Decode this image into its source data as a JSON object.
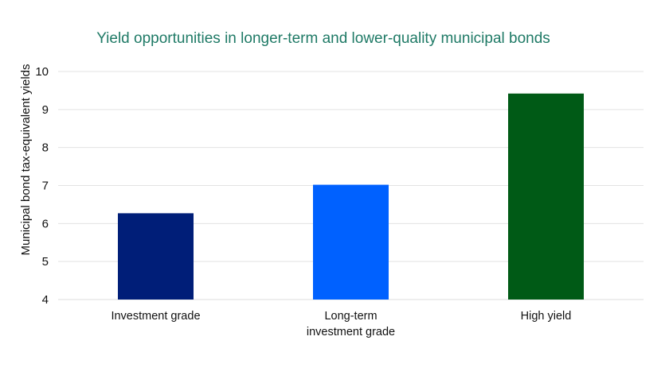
{
  "chart_data": {
    "type": "bar",
    "title": "Yield opportunities in longer-term and lower-quality municipal bonds",
    "xlabel": "",
    "ylabel": "Municipal bond tax-equivalent yields",
    "ylim": [
      4,
      10
    ],
    "yticks": [
      4,
      5,
      6,
      7,
      8,
      9,
      10
    ],
    "grid": true,
    "legend": "none",
    "categories": [
      [
        "Investment grade"
      ],
      [
        "Long-term",
        "investment grade"
      ],
      [
        "High yield"
      ]
    ],
    "values": [
      6.27,
      7.02,
      9.42
    ],
    "colors": [
      "#001e78",
      "#0061ff",
      "#005a16"
    ],
    "grid_color": "#e3e3e3",
    "title_color": "#1f7a66"
  }
}
